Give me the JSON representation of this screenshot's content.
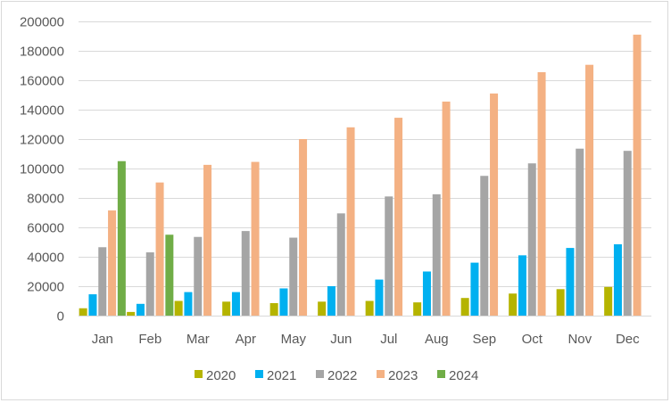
{
  "chart_data": {
    "type": "bar",
    "categories": [
      "Jan",
      "Feb",
      "Mar",
      "Apr",
      "May",
      "Jun",
      "Jul",
      "Aug",
      "Sep",
      "Oct",
      "Nov",
      "Dec"
    ],
    "ylim": [
      0,
      200000
    ],
    "yticks": [
      0,
      20000,
      40000,
      60000,
      80000,
      100000,
      120000,
      140000,
      160000,
      180000,
      200000
    ],
    "ytick_labels": [
      "0",
      "20000",
      "40000",
      "60000",
      "80000",
      "100000",
      "120000",
      "140000",
      "160000",
      "180000",
      "200000"
    ],
    "grid": true,
    "legend_position": "bottom",
    "series": [
      {
        "name": "2020",
        "color": "#b5b400",
        "values": [
          5000,
          2500,
          10000,
          9500,
          8500,
          9500,
          10000,
          9000,
          12000,
          15000,
          18000,
          19500
        ]
      },
      {
        "name": "2021",
        "color": "#00b0f0",
        "values": [
          14500,
          8000,
          16000,
          16000,
          18500,
          20000,
          24500,
          30000,
          36000,
          41000,
          46000,
          48500
        ]
      },
      {
        "name": "2022",
        "color": "#a5a5a5",
        "values": [
          46500,
          43000,
          53500,
          57500,
          53000,
          69500,
          81000,
          82500,
          95000,
          103500,
          113500,
          112000
        ]
      },
      {
        "name": "2023",
        "color": "#f4b183",
        "values": [
          71500,
          90500,
          102500,
          104500,
          120000,
          128000,
          134500,
          145500,
          151000,
          165500,
          170500,
          191000
        ]
      },
      {
        "name": "2024",
        "color": "#70ad47",
        "values": [
          105000,
          55000,
          null,
          null,
          null,
          null,
          null,
          null,
          null,
          null,
          null,
          null
        ]
      }
    ]
  }
}
